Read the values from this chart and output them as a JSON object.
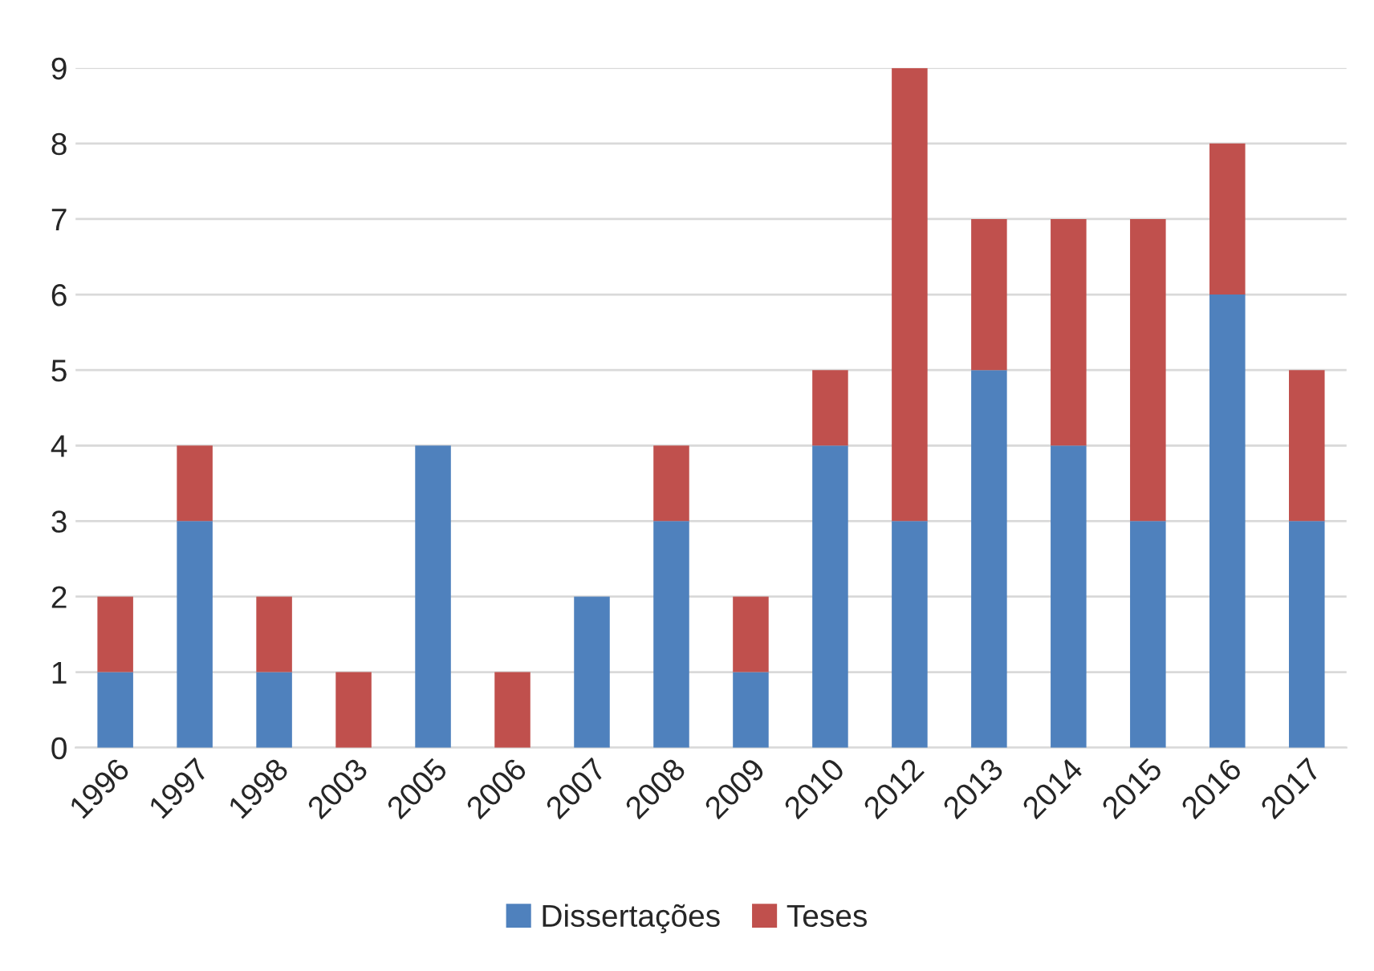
{
  "chart_data": {
    "type": "bar",
    "stacked": true,
    "categories": [
      "1996",
      "1997",
      "1998",
      "2003",
      "2005",
      "2006",
      "2007",
      "2008",
      "2009",
      "2010",
      "2012",
      "2013",
      "2014",
      "2015",
      "2016",
      "2017"
    ],
    "series": [
      {
        "name": "Dissertações",
        "color": "#4f81bd",
        "values": [
          1,
          3,
          1,
          0,
          4,
          0,
          2,
          3,
          1,
          4,
          3,
          5,
          4,
          3,
          6,
          3
        ]
      },
      {
        "name": "Teses",
        "color": "#c0504d",
        "values": [
          1,
          1,
          1,
          1,
          0,
          1,
          0,
          1,
          1,
          1,
          6,
          2,
          3,
          4,
          2,
          2
        ]
      }
    ],
    "ylim": [
      0,
      9
    ],
    "yticks": [
      0,
      1,
      2,
      3,
      4,
      5,
      6,
      7,
      8,
      9
    ],
    "grid": "y",
    "legend": "bottom"
  }
}
